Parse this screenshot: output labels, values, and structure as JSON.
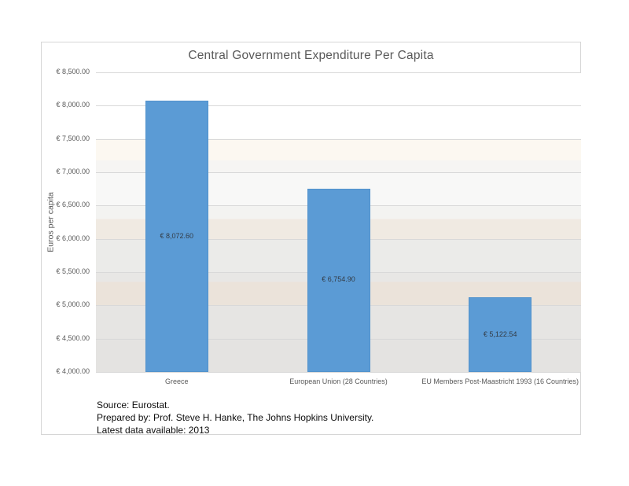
{
  "chart_data": {
    "type": "bar",
    "title": "Central Government Expenditure Per Capita",
    "ylabel": "Euros per capita",
    "xlabel": "",
    "categories": [
      "Greece",
      "European Union (28 Countries)",
      "EU Members Post-Maastricht 1993 (16 Countries)"
    ],
    "values": [
      8072.6,
      6754.9,
      5122.54
    ],
    "value_labels": [
      "€ 8,072.60",
      "€ 6,754.90",
      "€ 5,122.54"
    ],
    "ylim": [
      4000,
      8500
    ],
    "yticks": [
      8500,
      8000,
      7500,
      7000,
      6500,
      6000,
      5500,
      5000,
      4500,
      4000
    ],
    "ytick_labels": [
      "€ 8,500.00",
      "€ 8,000.00",
      "€ 7,500.00",
      "€ 7,000.00",
      "€ 6,500.00",
      "€ 6,000.00",
      "€ 5,500.00",
      "€ 5,000.00",
      "€ 4,500.00",
      "€ 4,000.00"
    ],
    "bar_color": "#5b9bd5",
    "grid": true,
    "legend_position": "none"
  },
  "footer": {
    "lines": [
      "Source: Eurostat.",
      "Prepared by: Prof. Steve H. Hanke, The Johns Hopkins University.",
      "Latest data available: 2013"
    ]
  }
}
